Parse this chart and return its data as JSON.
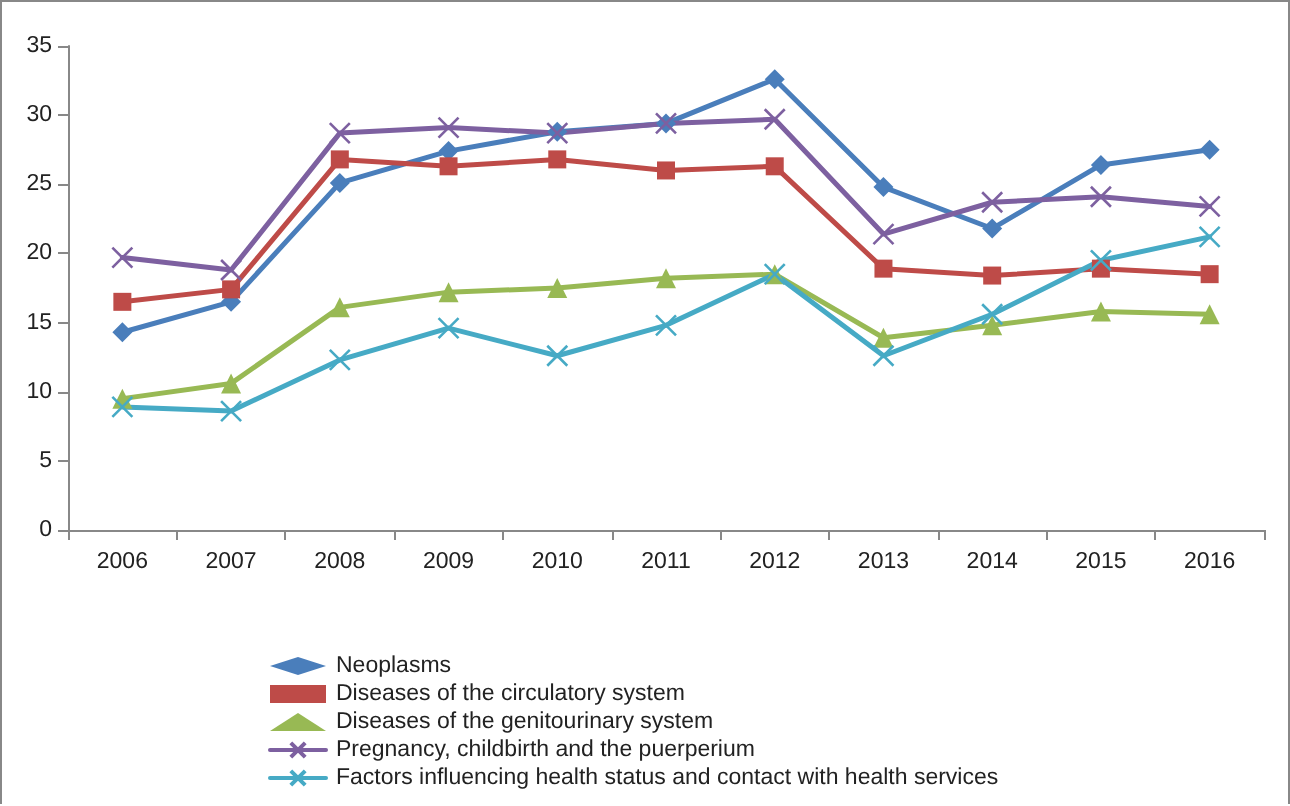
{
  "chart_data": {
    "type": "line",
    "categories": [
      "2006",
      "2007",
      "2008",
      "2009",
      "2010",
      "2011",
      "2012",
      "2013",
      "2014",
      "2015",
      "2016"
    ],
    "ylim": [
      0,
      35
    ],
    "yticks": [
      0,
      5,
      10,
      15,
      20,
      25,
      30,
      35
    ],
    "grid": false,
    "legend": "bottom",
    "line_style": "solid",
    "series": [
      {
        "name": "Neoplasms",
        "color": "#4a7ebb",
        "marker": "diamond",
        "values": [
          14.3,
          16.5,
          25.1,
          27.4,
          28.8,
          29.4,
          32.6,
          24.8,
          21.8,
          26.4,
          27.5
        ]
      },
      {
        "name": "Diseases of the circulatory system",
        "color": "#be4b48",
        "marker": "square",
        "values": [
          16.5,
          17.4,
          26.8,
          26.3,
          26.8,
          26.0,
          26.3,
          18.9,
          18.4,
          18.9,
          18.5
        ]
      },
      {
        "name": "Diseases of the genitourinary system",
        "color": "#98b954",
        "marker": "triangle",
        "values": [
          9.5,
          10.6,
          16.1,
          17.2,
          17.5,
          18.2,
          18.5,
          13.9,
          14.8,
          15.8,
          15.6
        ]
      },
      {
        "name": "Pregnancy, childbirth and the puerperium",
        "color": "#7d60a0",
        "marker": "cross",
        "values": [
          19.7,
          18.8,
          28.7,
          29.1,
          28.7,
          29.4,
          29.7,
          21.4,
          23.7,
          24.1,
          23.4
        ]
      },
      {
        "name": "Factors influencing health status and contact with health services",
        "color": "#46aac5",
        "marker": "cross",
        "values": [
          8.9,
          8.6,
          12.3,
          14.6,
          12.6,
          14.8,
          18.5,
          12.6,
          15.6,
          19.5,
          21.2
        ]
      }
    ]
  }
}
